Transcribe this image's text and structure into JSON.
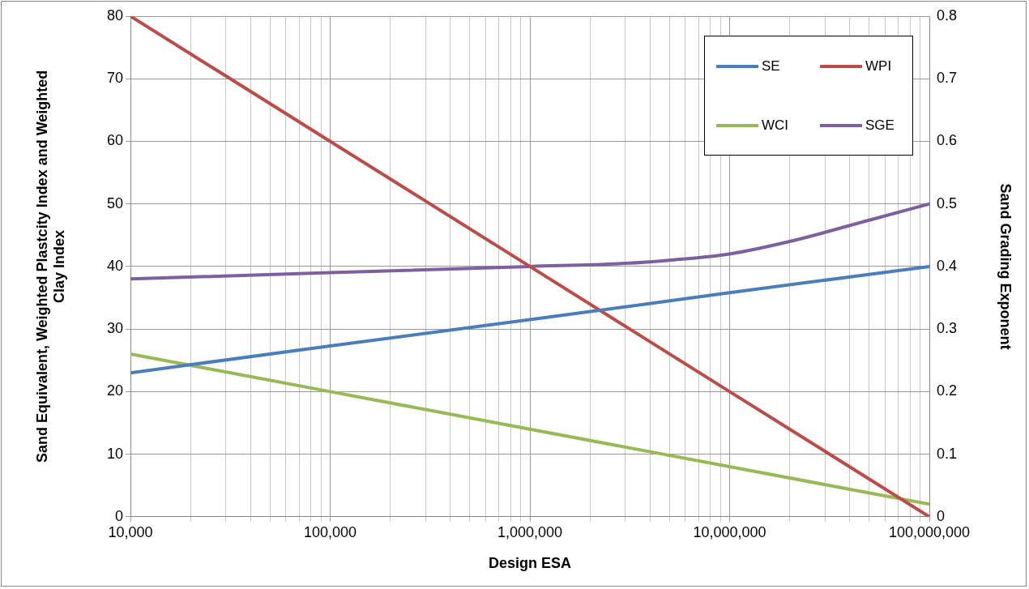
{
  "chart_data": {
    "type": "line",
    "xlabel": "Design ESA",
    "ylabel": "Sand Equivalent, Weighted Plastcity Index and Weighted Clay Index",
    "y2label": "Sand Grading Exponent",
    "log": "x",
    "grid": true,
    "legend": "top right",
    "marker": "none",
    "line_style": "solid",
    "xlim": [
      10000,
      100000000
    ],
    "xticks": [
      {
        "value": 10000,
        "label": "10,000"
      },
      {
        "value": 20000,
        "label": null
      },
      {
        "value": 30000,
        "label": null
      },
      {
        "value": 40000,
        "label": null
      },
      {
        "value": 50000,
        "label": null
      },
      {
        "value": 60000,
        "label": null
      },
      {
        "value": 70000,
        "label": null
      },
      {
        "value": 80000,
        "label": null
      },
      {
        "value": 90000,
        "label": null
      },
      {
        "value": 100000,
        "label": "100,000"
      },
      {
        "value": 200000,
        "label": null
      },
      {
        "value": 300000,
        "label": null
      },
      {
        "value": 400000,
        "label": null
      },
      {
        "value": 500000,
        "label": null
      },
      {
        "value": 600000,
        "label": null
      },
      {
        "value": 700000,
        "label": null
      },
      {
        "value": 800000,
        "label": null
      },
      {
        "value": 900000,
        "label": null
      },
      {
        "value": 1000000,
        "label": "1,000,000"
      },
      {
        "value": 2000000,
        "label": null
      },
      {
        "value": 3000000,
        "label": null
      },
      {
        "value": 4000000,
        "label": null
      },
      {
        "value": 5000000,
        "label": null
      },
      {
        "value": 6000000,
        "label": null
      },
      {
        "value": 7000000,
        "label": null
      },
      {
        "value": 8000000,
        "label": null
      },
      {
        "value": 9000000,
        "label": null
      },
      {
        "value": 10000000,
        "label": "10,000,000"
      },
      {
        "value": 20000000,
        "label": null
      },
      {
        "value": 30000000,
        "label": null
      },
      {
        "value": 40000000,
        "label": null
      },
      {
        "value": 50000000,
        "label": null
      },
      {
        "value": 60000000,
        "label": null
      },
      {
        "value": 70000000,
        "label": null
      },
      {
        "value": 80000000,
        "label": null
      },
      {
        "value": 90000000,
        "label": null
      },
      {
        "value": 100000000,
        "label": "100,000,000"
      }
    ],
    "ylim": [
      0,
      80
    ],
    "yticks": [
      0,
      10,
      20,
      30,
      40,
      50,
      60,
      70,
      80
    ],
    "y2lim": [
      0,
      0.8
    ],
    "y2ticks": [
      0,
      0.1,
      0.2,
      0.3,
      0.4,
      0.5,
      0.6,
      0.7,
      0.8
    ],
    "series": [
      {
        "name": "SE",
        "color": "#4a7ebb",
        "x": [
          10000,
          100000,
          1000000,
          10000000,
          100000000
        ],
        "values": [
          23,
          27.3,
          31.5,
          35.8,
          40
        ]
      },
      {
        "name": "WPI",
        "color": "#be4b48",
        "x": [
          10000,
          100000,
          1000000,
          10000000,
          100000000
        ],
        "values": [
          80,
          60,
          40,
          20,
          0
        ]
      },
      {
        "name": "WCI",
        "color": "#98b954",
        "x": [
          10000,
          100000,
          1000000,
          10000000,
          100000000
        ],
        "values": [
          26,
          20,
          14,
          8,
          2
        ]
      },
      {
        "name": "SGE",
        "color": "#7d60a0",
        "axis": "y2",
        "x": [
          10000,
          100000,
          1000000,
          3000000,
          5000000,
          10000000,
          20000000,
          50000000,
          100000000
        ],
        "values": [
          0.38,
          0.39,
          0.4,
          0.405,
          0.41,
          0.42,
          0.44,
          0.474,
          0.5
        ]
      }
    ]
  }
}
